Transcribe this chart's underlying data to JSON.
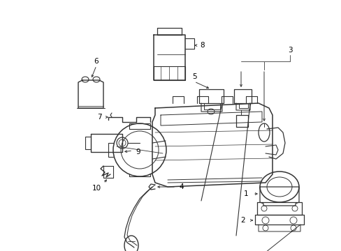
{
  "bg_color": "#ffffff",
  "line_color": "#333333",
  "text_color": "#000000",
  "figsize": [
    4.89,
    3.6
  ],
  "dpi": 100,
  "lw_main": 1.0,
  "lw_thin": 0.6,
  "fontsize": 7.5
}
